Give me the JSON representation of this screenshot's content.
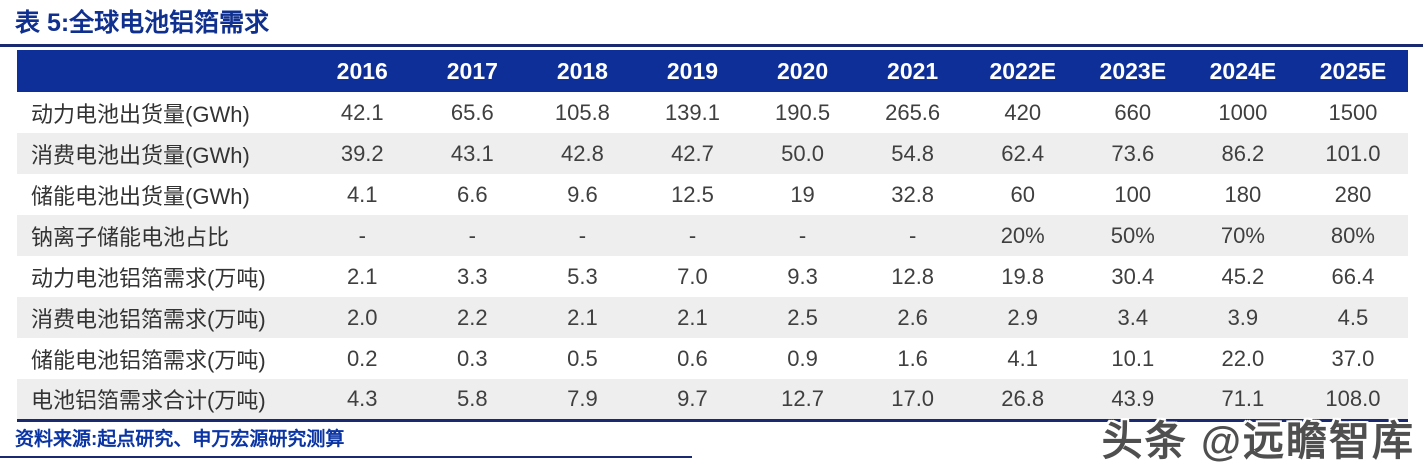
{
  "title": "表 5:全球电池铝箔需求",
  "table": {
    "col_headers": [
      "2016",
      "2017",
      "2018",
      "2019",
      "2020",
      "2021",
      "2022E",
      "2023E",
      "2024E",
      "2025E"
    ],
    "rows": [
      {
        "label": "动力电池出货量(GWh)",
        "values": [
          "42.1",
          "65.6",
          "105.8",
          "139.1",
          "190.5",
          "265.6",
          "420",
          "660",
          "1000",
          "1500"
        ]
      },
      {
        "label": "消费电池出货量(GWh)",
        "values": [
          "39.2",
          "43.1",
          "42.8",
          "42.7",
          "50.0",
          "54.8",
          "62.4",
          "73.6",
          "86.2",
          "101.0"
        ]
      },
      {
        "label": "储能电池出货量(GWh)",
        "values": [
          "4.1",
          "6.6",
          "9.6",
          "12.5",
          "19",
          "32.8",
          "60",
          "100",
          "180",
          "280"
        ]
      },
      {
        "label": "钠离子储能电池占比",
        "values": [
          "-",
          "-",
          "-",
          "-",
          "-",
          "-",
          "20%",
          "50%",
          "70%",
          "80%"
        ]
      },
      {
        "label": "动力电池铝箔需求(万吨)",
        "values": [
          "2.1",
          "3.3",
          "5.3",
          "7.0",
          "9.3",
          "12.8",
          "19.8",
          "30.4",
          "45.2",
          "66.4"
        ]
      },
      {
        "label": "消费电池铝箔需求(万吨)",
        "values": [
          "2.0",
          "2.2",
          "2.1",
          "2.1",
          "2.5",
          "2.6",
          "2.9",
          "3.4",
          "3.9",
          "4.5"
        ]
      },
      {
        "label": "储能电池铝箔需求(万吨)",
        "values": [
          "0.2",
          "0.3",
          "0.5",
          "0.6",
          "0.9",
          "1.6",
          "4.1",
          "10.1",
          "22.0",
          "37.0"
        ]
      },
      {
        "label": "电池铝箔需求合计(万吨)",
        "values": [
          "4.3",
          "5.8",
          "7.9",
          "9.7",
          "12.7",
          "17.0",
          "26.8",
          "43.9",
          "71.1",
          "108.0"
        ]
      }
    ]
  },
  "source": "资料来源:起点研究、申万宏源研究测算",
  "watermark": "头条 @远瞻智库",
  "colors": {
    "header_bg": "#0e2f98",
    "rule": "#1a2a70",
    "title_text": "#10308f",
    "source_text": "#0b35a4",
    "row_stripe": "#eeeeee",
    "cell_text": "#3f3f3f",
    "watermark_text": "#4f4f4f"
  }
}
